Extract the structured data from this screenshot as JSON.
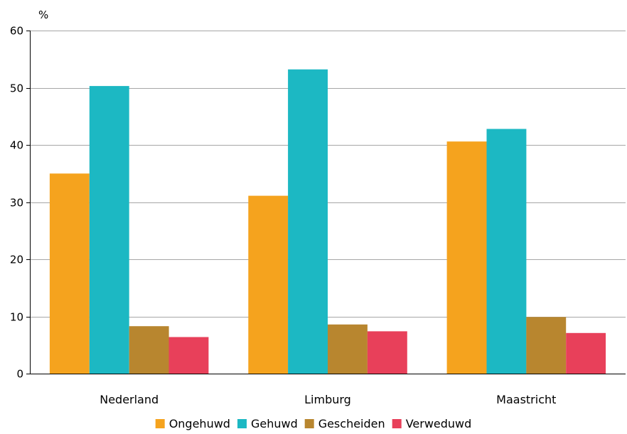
{
  "chart_data": {
    "type": "bar",
    "title": "",
    "unit_label": "%",
    "xlabel": "",
    "ylabel": "",
    "ylim": [
      0,
      60
    ],
    "yticks": [
      0,
      10,
      20,
      30,
      40,
      50,
      60
    ],
    "grid": true,
    "legend_position": "bottom",
    "categories": [
      "Nederland",
      "Limburg",
      "Maastricht"
    ],
    "series": [
      {
        "name": "Ongehuwd",
        "color": "#F5A31E",
        "values": [
          35.0,
          31.1,
          40.6
        ]
      },
      {
        "name": "Gehuwd",
        "color": "#1CB8C3",
        "values": [
          50.3,
          53.2,
          42.8
        ]
      },
      {
        "name": "Gescheiden",
        "color": "#B8862F",
        "values": [
          8.3,
          8.6,
          9.9
        ]
      },
      {
        "name": "Verweduwd",
        "color": "#E8405A",
        "values": [
          6.4,
          7.4,
          7.1
        ]
      }
    ]
  }
}
